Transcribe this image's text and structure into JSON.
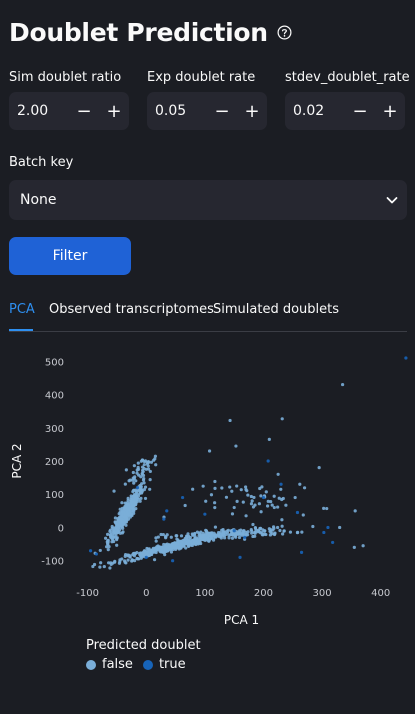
{
  "page": {
    "title": "Doublet Prediction"
  },
  "params": [
    {
      "label": "Sim doublet ratio",
      "value": "2.00"
    },
    {
      "label": "Exp doublet rate",
      "value": "0.05"
    },
    {
      "label": "stdev_doublet_rate",
      "value": "0.02"
    }
  ],
  "stepper_icons": {
    "minus": "minus-icon",
    "plus": "plus-icon"
  },
  "batch": {
    "label": "Batch key",
    "value": "None"
  },
  "filter_button": "Filter",
  "tabs": [
    {
      "label": "PCA",
      "active": true
    },
    {
      "label": "Observed transcriptomes",
      "active": false
    },
    {
      "label": "Simulated doublets",
      "active": false
    }
  ],
  "colors": {
    "false": "#7aaed8",
    "true": "#1764b9",
    "accent": "#2e8ff0",
    "button": "#1f62d6"
  },
  "chart_data": {
    "type": "scatter",
    "xlabel": "PCA 1",
    "ylabel": "PCA 2",
    "xticks": [
      -100,
      0,
      100,
      200,
      300,
      400
    ],
    "yticks": [
      -100,
      0,
      100,
      200,
      300,
      400,
      500
    ],
    "xlim": [
      -125,
      450
    ],
    "ylim": [
      -125,
      525
    ],
    "legend_title": "Predicted doublet",
    "legend": [
      "false",
      "true"
    ],
    "series": [
      {
        "name": "false",
        "clusters": [
          {
            "cx": -35,
            "cy": 40,
            "sx": 15,
            "sy": 45,
            "n": 380,
            "slope": 2.6
          },
          {
            "cx": 40,
            "cy": -60,
            "sx": 45,
            "sy": 18,
            "n": 420,
            "slope": 0.45
          },
          {
            "cx": 140,
            "cy": -20,
            "sx": 55,
            "sy": 20,
            "n": 180,
            "slope": 0.1
          },
          {
            "cx": -10,
            "cy": 170,
            "sx": 15,
            "sy": 50,
            "n": 50,
            "slope": 1.5
          },
          {
            "cx": 200,
            "cy": 80,
            "sx": 60,
            "sy": 80,
            "n": 60,
            "slope": 0
          }
        ],
        "outliers": [
          [
            335,
            430
          ],
          [
            143,
            322
          ],
          [
            232,
            327
          ],
          [
            295,
            180
          ],
          [
            330,
            0
          ],
          [
            355,
            -60
          ],
          [
            370,
            -55
          ],
          [
            262,
            130
          ],
          [
            225,
            160
          ],
          [
            210,
            265
          ],
          [
            108,
            230
          ],
          [
            153,
            245
          ]
        ]
      },
      {
        "name": "true",
        "points": [
          [
            443,
            510
          ],
          [
            208,
            200
          ],
          [
            230,
            130
          ],
          [
            265,
            -75
          ],
          [
            318,
            -45
          ],
          [
            303,
            -15
          ],
          [
            310,
            0
          ],
          [
            258,
            45
          ],
          [
            200,
            90
          ],
          [
            160,
            -90
          ],
          [
            168,
            -30
          ],
          [
            150,
            -10
          ],
          [
            100,
            40
          ],
          [
            45,
            -100
          ],
          [
            0,
            -90
          ],
          [
            35,
            50
          ],
          [
            -15,
            120
          ],
          [
            30,
            25
          ],
          [
            62,
            90
          ],
          [
            -95,
            -70
          ],
          [
            -85,
            -80
          ]
        ]
      }
    ]
  }
}
